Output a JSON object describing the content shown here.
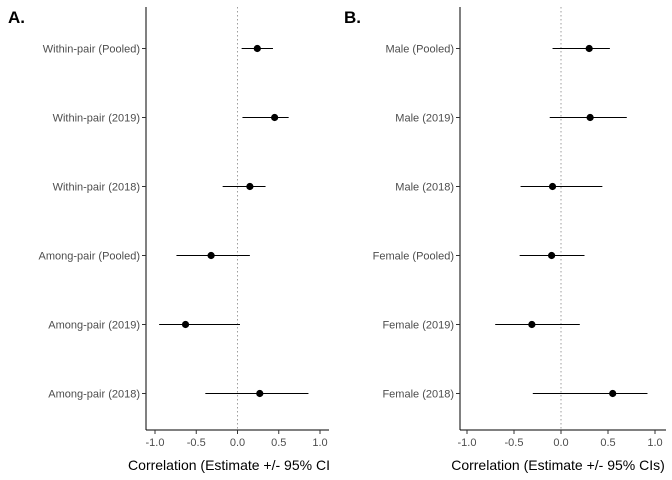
{
  "chart_data": [
    {
      "type": "forest",
      "panel_label": "A.",
      "xlabel": "Correlation (Estimate +/- 95% CI",
      "xlim": [
        -1.1,
        1.1
      ],
      "xticks": [
        -1.0,
        -0.5,
        0.0,
        0.5,
        1.0
      ],
      "xtick_labels": [
        "-1.0",
        "-0.5",
        "0.0",
        "0.5",
        "1.0"
      ],
      "reference_line": 0,
      "rows": [
        {
          "label": "Within-pair (Pooled)",
          "estimate": 0.24,
          "lower": 0.05,
          "upper": 0.43
        },
        {
          "label": "Within-pair (2019)",
          "estimate": 0.45,
          "lower": 0.06,
          "upper": 0.62
        },
        {
          "label": "Within-pair (2018)",
          "estimate": 0.15,
          "lower": -0.18,
          "upper": 0.34
        },
        {
          "label": "Among-pair (Pooled)",
          "estimate": -0.32,
          "lower": -0.74,
          "upper": 0.15
        },
        {
          "label": "Among-pair (2019)",
          "estimate": -0.63,
          "lower": -0.95,
          "upper": 0.03
        },
        {
          "label": "Among-pair (2018)",
          "estimate": 0.27,
          "lower": -0.39,
          "upper": 0.86
        }
      ]
    },
    {
      "type": "forest",
      "panel_label": "B.",
      "xlabel": "Correlation (Estimate +/- 95% CIs)",
      "xlim": [
        -1.1,
        1.1
      ],
      "xticks": [
        -1.0,
        -0.5,
        0.0,
        0.5,
        1.0
      ],
      "xtick_labels": [
        "-1.0",
        "-0.5",
        "0.0",
        "0.5",
        "1.0"
      ],
      "reference_line": 0,
      "rows": [
        {
          "label": "Male (Pooled)",
          "estimate": 0.3,
          "lower": -0.09,
          "upper": 0.52
        },
        {
          "label": "Male (2019)",
          "estimate": 0.31,
          "lower": -0.12,
          "upper": 0.7
        },
        {
          "label": "Male (2018)",
          "estimate": -0.09,
          "lower": -0.43,
          "upper": 0.44
        },
        {
          "label": "Female (Pooled)",
          "estimate": -0.1,
          "lower": -0.44,
          "upper": 0.25
        },
        {
          "label": "Female (2019)",
          "estimate": -0.31,
          "lower": -0.7,
          "upper": 0.2
        },
        {
          "label": "Female (2018)",
          "estimate": 0.55,
          "lower": -0.3,
          "upper": 0.92
        }
      ]
    }
  ]
}
